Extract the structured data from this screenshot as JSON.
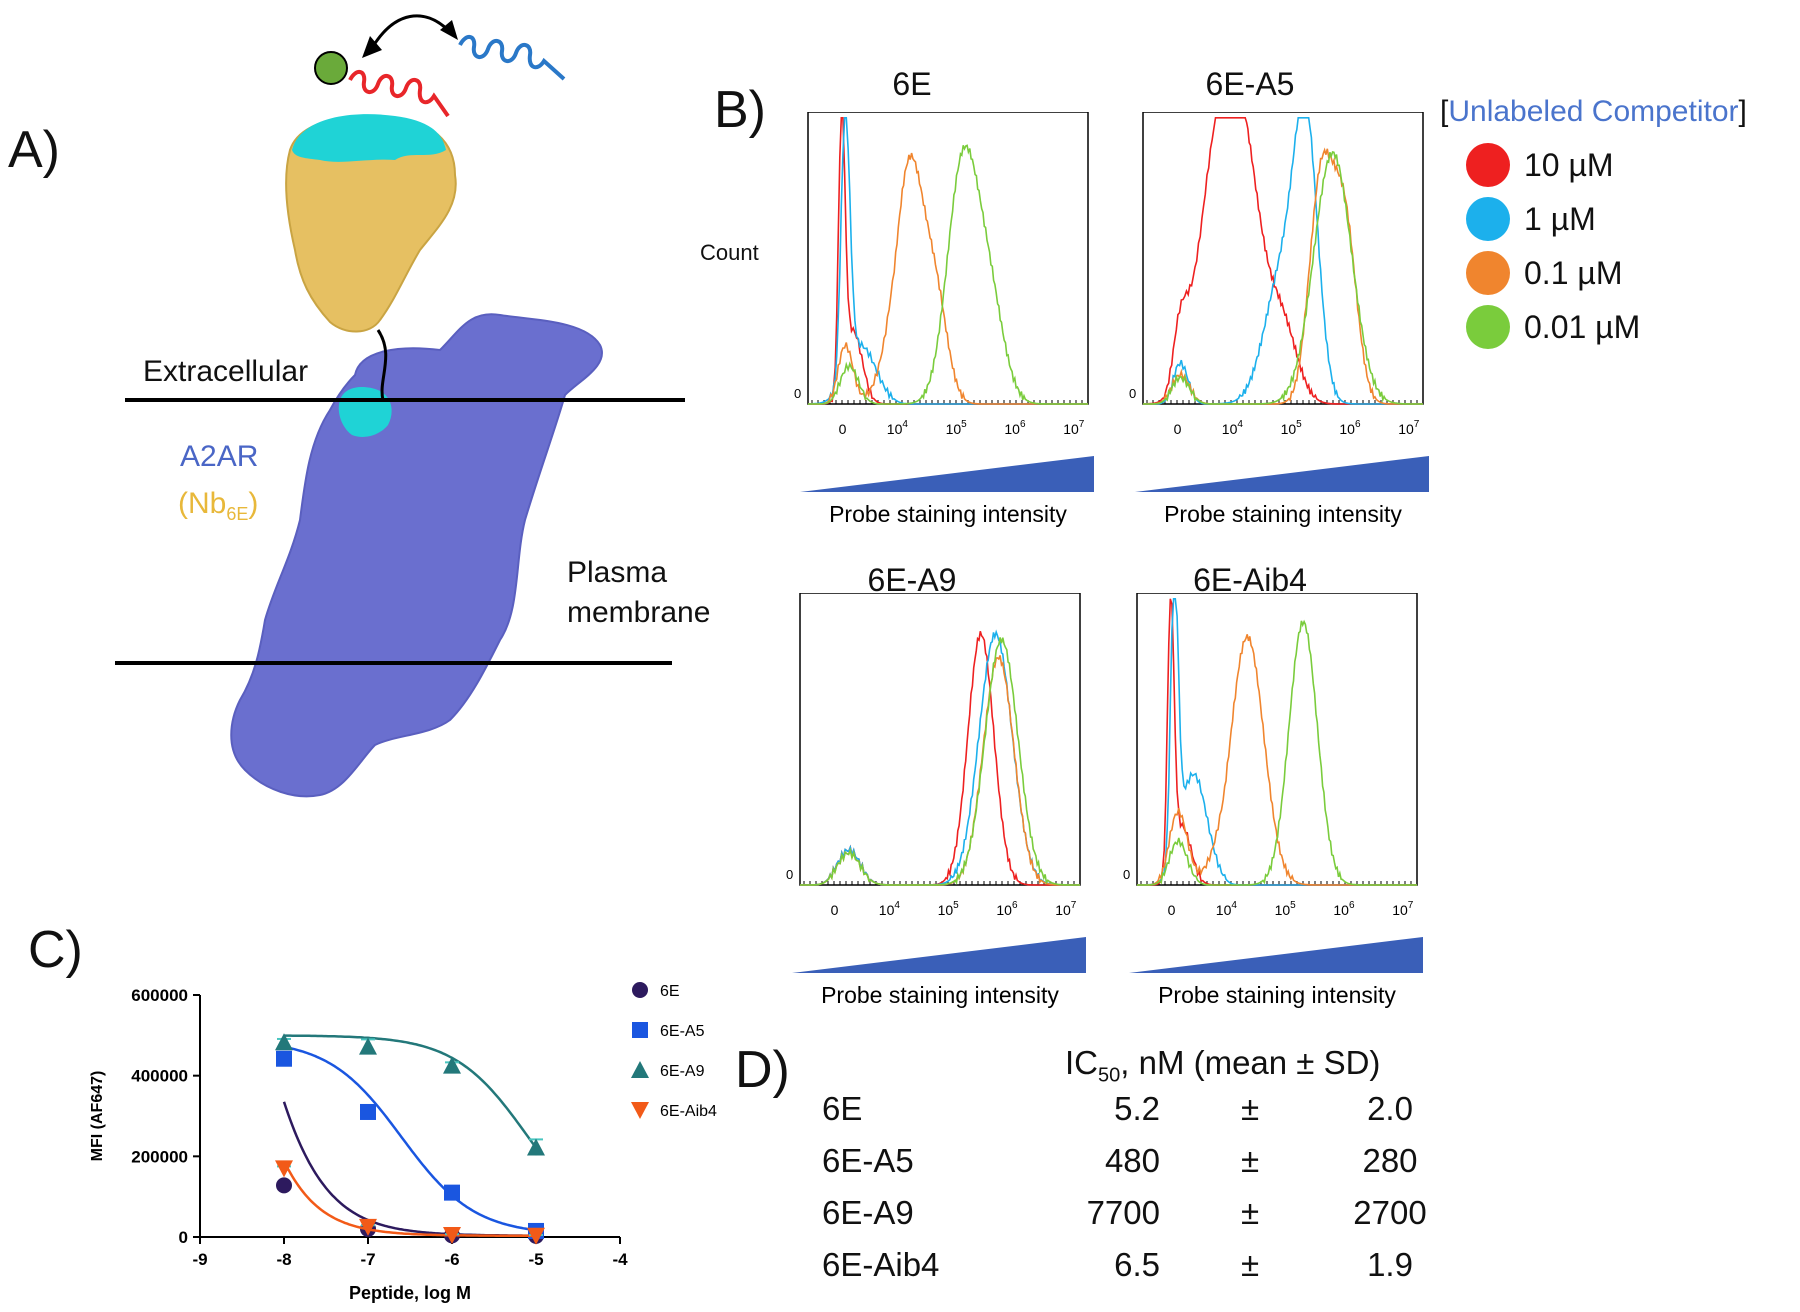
{
  "panel_labels": {
    "a": "A)",
    "b": "B)",
    "c": "C)",
    "d": "D)"
  },
  "panel_a": {
    "extracellular_label": "Extracellular",
    "receptor_label": "A2AR",
    "nanobody_label_main": "(Nb",
    "nanobody_label_sub": "6E",
    "nanobody_label_end": ")",
    "membrane_label_line1": "Plasma",
    "membrane_label_line2": "membrane",
    "colors": {
      "receptor": "#6a6fcf",
      "nanobody": "#e6c062",
      "epitope": "#1fd3d6",
      "probe_tag": "#6aaa3a",
      "peptide_red": "#e8262a",
      "peptide_blue": "#2a78c8",
      "nanobody_text": "#e8b83a",
      "receptor_text": "#4a66c6"
    }
  },
  "panel_b": {
    "y_label": "Count",
    "x_label": "Probe staining intensity",
    "legend_title_open": "[",
    "legend_title_text": "Unlabeled Competitor",
    "legend_title_close": "]",
    "legend": [
      {
        "label": "10 µM",
        "color": "#ee2020"
      },
      {
        "label": "1 µM",
        "color": "#1cb0ec"
      },
      {
        "label": "0.1 µM",
        "color": "#f0852e"
      },
      {
        "label": "0.01 µM",
        "color": "#7acc3c"
      }
    ],
    "xticks": [
      {
        "base": "0",
        "exp": ""
      },
      {
        "base": "10",
        "exp": "4"
      },
      {
        "base": "10",
        "exp": "5"
      },
      {
        "base": "10",
        "exp": "6"
      },
      {
        "base": "10",
        "exp": "7"
      }
    ],
    "zero_label": "0",
    "wedge_color": "#3a5fb8"
  },
  "panel_d": {
    "header_ic": "IC",
    "header_sub": "50",
    "header_rest": ", nM (mean ± SD)",
    "rows": [
      {
        "name": "6E",
        "mean": "5.2",
        "pm": "±",
        "sd": "2.0"
      },
      {
        "name": "6E-A5",
        "mean": "480",
        "pm": "±",
        "sd": "280"
      },
      {
        "name": "6E-A9",
        "mean": "7700",
        "pm": "±",
        "sd": "2700"
      },
      {
        "name": "6E-Aib4",
        "mean": "6.5",
        "pm": "±",
        "sd": "1.9"
      }
    ]
  },
  "chart_data": [
    {
      "type": "area",
      "title": "6E",
      "xlabel": "Probe staining intensity",
      "ylabel": "Count",
      "xscale": "biexponential",
      "series": [
        {
          "name": "10 µM",
          "color": "#ee2020",
          "peaks": [
            [
              3.3,
              0.93,
              0.045
            ],
            [
              3.45,
              0.25,
              0.12
            ]
          ]
        },
        {
          "name": "1 µM",
          "color": "#1cb0ec",
          "peaks": [
            [
              3.35,
              0.88,
              0.06
            ],
            [
              3.55,
              0.2,
              0.2
            ]
          ]
        },
        {
          "name": "0.1 µM",
          "color": "#f0852e",
          "peaks": [
            [
              3.35,
              0.2,
              0.1
            ],
            [
              4.25,
              0.82,
              0.24
            ],
            [
              4.7,
              0.33,
              0.2
            ]
          ]
        },
        {
          "name": "0.01 µM",
          "color": "#7acc3c",
          "peaks": [
            [
              3.4,
              0.13,
              0.12
            ],
            [
              5.15,
              0.8,
              0.26
            ],
            [
              5.6,
              0.35,
              0.25
            ]
          ]
        }
      ]
    },
    {
      "type": "area",
      "title": "6E-A5",
      "xlabel": "Probe staining intensity",
      "ylabel": "Count",
      "xscale": "biexponential",
      "series": [
        {
          "name": "10 µM",
          "color": "#ee2020",
          "peaks": [
            [
              3.35,
              0.2,
              0.1
            ],
            [
              3.8,
              0.55,
              0.25
            ],
            [
              4.2,
              0.9,
              0.32
            ],
            [
              4.9,
              0.25,
              0.25
            ]
          ]
        },
        {
          "name": "1 µM",
          "color": "#1cb0ec",
          "peaks": [
            [
              3.35,
              0.14,
              0.1
            ],
            [
              4.9,
              0.45,
              0.3
            ],
            [
              5.3,
              0.86,
              0.2
            ]
          ]
        },
        {
          "name": "0.1 µM",
          "color": "#f0852e",
          "peaks": [
            [
              3.35,
              0.1,
              0.12
            ],
            [
              5.55,
              0.75,
              0.2
            ],
            [
              5.95,
              0.62,
              0.2
            ]
          ]
        },
        {
          "name": "0.01 µM",
          "color": "#7acc3c",
          "peaks": [
            [
              3.35,
              0.09,
              0.12
            ],
            [
              5.75,
              0.86,
              0.32
            ]
          ]
        }
      ]
    },
    {
      "type": "area",
      "title": "6E-A9",
      "xlabel": "Probe staining intensity",
      "ylabel": "Count",
      "xscale": "biexponential",
      "series": [
        {
          "name": "10 µM",
          "color": "#ee2020",
          "peaks": [
            [
              3.5,
              0.12,
              0.15
            ],
            [
              5.6,
              0.86,
              0.22
            ]
          ]
        },
        {
          "name": "1 µM",
          "color": "#1cb0ec",
          "peaks": [
            [
              3.5,
              0.12,
              0.15
            ],
            [
              5.85,
              0.86,
              0.28
            ]
          ]
        },
        {
          "name": "0.1 µM",
          "color": "#f0852e",
          "peaks": [
            [
              3.5,
              0.11,
              0.15
            ],
            [
              5.9,
              0.78,
              0.26
            ]
          ]
        },
        {
          "name": "0.01 µM",
          "color": "#7acc3c",
          "peaks": [
            [
              3.5,
              0.11,
              0.15
            ],
            [
              5.95,
              0.84,
              0.28
            ]
          ]
        }
      ]
    },
    {
      "type": "area",
      "title": "6E-Aib4",
      "xlabel": "Probe staining intensity",
      "ylabel": "Count",
      "xscale": "biexponential",
      "series": [
        {
          "name": "10 µM",
          "color": "#ee2020",
          "peaks": [
            [
              3.3,
              0.93,
              0.045
            ],
            [
              3.45,
              0.2,
              0.12
            ]
          ]
        },
        {
          "name": "1 µM",
          "color": "#1cb0ec",
          "peaks": [
            [
              3.35,
              0.95,
              0.05
            ],
            [
              3.6,
              0.38,
              0.18
            ]
          ]
        },
        {
          "name": "0.1 µM",
          "color": "#f0852e",
          "peaks": [
            [
              3.4,
              0.25,
              0.12
            ],
            [
              4.4,
              0.85,
              0.28
            ]
          ]
        },
        {
          "name": "0.01 µM",
          "color": "#7acc3c",
          "peaks": [
            [
              3.4,
              0.15,
              0.12
            ],
            [
              5.35,
              0.9,
              0.24
            ]
          ]
        }
      ]
    },
    {
      "type": "scatter",
      "xlabel": "Peptide, log M",
      "ylabel": "MFI (AF647)",
      "xlim": [
        -9,
        -4
      ],
      "ylim": [
        0,
        600000
      ],
      "xticks": [
        -9,
        -8,
        -7,
        -6,
        -5,
        -4
      ],
      "yticks": [
        0,
        200000,
        400000,
        600000
      ],
      "legend_position": "right",
      "series": [
        {
          "name": "6E",
          "color": "#2d1a5e",
          "marker": "circle",
          "x": [
            -8,
            -7,
            -6,
            -5
          ],
          "y": [
            128000,
            20000,
            4000,
            3000
          ],
          "err": [
            5000,
            4000,
            2000,
            2000
          ],
          "fit": {
            "top": 2000000,
            "bottom": 3000,
            "logIC50": -8.7,
            "hill": 1
          }
        },
        {
          "name": "6E-A5",
          "color": "#1a56e0",
          "marker": "square",
          "x": [
            -8,
            -7,
            -6,
            -5
          ],
          "y": [
            442000,
            310000,
            110000,
            15000
          ],
          "err": [
            12000,
            15000,
            8000,
            5000
          ],
          "fit": {
            "top": 490000,
            "bottom": 5000,
            "logIC50": -6.6,
            "hill": 1
          }
        },
        {
          "name": "6E-A9",
          "color": "#23787a",
          "marker": "triangle",
          "x": [
            -8,
            -7,
            -6,
            -5
          ],
          "y": [
            483000,
            472000,
            425000,
            222000
          ],
          "err": [
            8000,
            18000,
            8000,
            20000
          ],
          "fit": {
            "top": 500000,
            "bottom": 0,
            "logIC50": -5.1,
            "hill": 1
          }
        },
        {
          "name": "6E-Aib4",
          "color": "#f25a18",
          "marker": "triangle-down",
          "x": [
            -8,
            -7,
            -6,
            -5
          ],
          "y": [
            170000,
            25000,
            5000,
            3000
          ],
          "err": [
            5000,
            4000,
            2000,
            2000
          ],
          "fit": {
            "top": 2000000,
            "bottom": 3000,
            "logIC50": -8.9,
            "hill": 1.1
          }
        }
      ]
    }
  ]
}
